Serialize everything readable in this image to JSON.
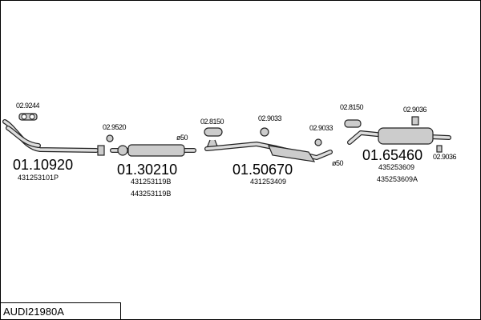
{
  "parts": [
    {
      "code": "01.10920",
      "refs": [
        "431253101P"
      ]
    },
    {
      "code": "01.30210",
      "refs": [
        "431253119B",
        "443253119B"
      ]
    },
    {
      "code": "01.50670",
      "refs": [
        "431253409"
      ]
    },
    {
      "code": "01.65460",
      "refs": [
        "435253609",
        "435253609A"
      ]
    }
  ],
  "fittings": [
    "02.9244",
    "02.9520",
    "02.8150",
    "02.9033",
    "02.9033",
    "02.8150",
    "02.9036",
    "02.9036"
  ],
  "diameters": [
    "ø50",
    "ø50"
  ],
  "model": "AUDI21980A"
}
